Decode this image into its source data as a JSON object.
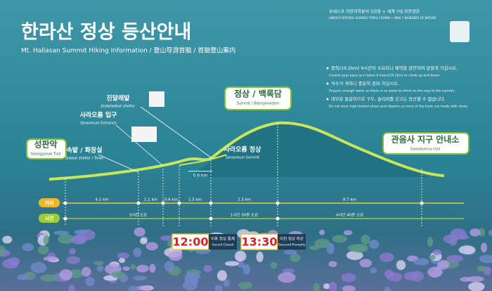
{
  "header": {
    "title": "한라산 정상 등산안내",
    "subtitle": "Mt. Hallasan Summit Hiking Information  /  登山导游首脑  /  首脑登山案内"
  },
  "badge": {
    "korean": "유네스코 자연과학분야 3관왕 + 세계 7대 자연경관",
    "english": "UNESCO NATURAL SCIENCE TRIPLE CROWN + NEW 7 WONDERS OF NATURE"
  },
  "notes": [
    {
      "korean": "왕복(19.2km) 9시간이 소요되니 체력을 감안하여 알맞게 가십시오.",
      "english": "Control your pace as it takes 9 hours(19.2km) to climb up and down."
    },
    {
      "korean": "식수가 귀하니 충분히 준비 하십시오.",
      "english": "Prepare enough water as there is no water-to-drink on the way to the summit."
    },
    {
      "korean": "대부분 돌길이므로 구두, 슬리퍼를 신고는 등산할 수 없습니다.",
      "english": "Do not wear high-heeled shoes and slippers as most of the trails are made with stone."
    }
  ],
  "places": [
    {
      "name": "성판악",
      "english": "Seongpanak Trail"
    },
    {
      "name": "속밭 / 화장실",
      "english": "Sokbat shelter / Toilet"
    },
    {
      "name": "사라오름 입구",
      "english": "Saraoreum Entrance"
    },
    {
      "name": "진달래밭",
      "english": "Jindallaebat shelter"
    },
    {
      "name": "사라오름 정상",
      "english": "Saraoreum Summit"
    },
    {
      "name": "정상 / 백록담",
      "english": "Summit / Baengnokdam"
    },
    {
      "name": "관음사 지구 안내소",
      "english": "Gwaneumsa trail"
    }
  ],
  "branch_distance": "0.6 km",
  "distance_row": {
    "label": "거리",
    "segments": [
      "4.1 km",
      "1.1 km",
      "0.6 km",
      "1.5 km",
      "2.3 km",
      "8.7 km"
    ]
  },
  "time_row": {
    "label": "시간",
    "segments": [
      "3시간 소요",
      "1시간 30분 소요",
      "4시간 40분 소요"
    ]
  },
  "closures": [
    {
      "time": "12:00",
      "korean": "이후 정상 통제",
      "english": "Ascent Closed"
    },
    {
      "time": "13:30",
      "korean": "이전 정상 하산",
      "english": "Descend Promptly"
    }
  ]
}
